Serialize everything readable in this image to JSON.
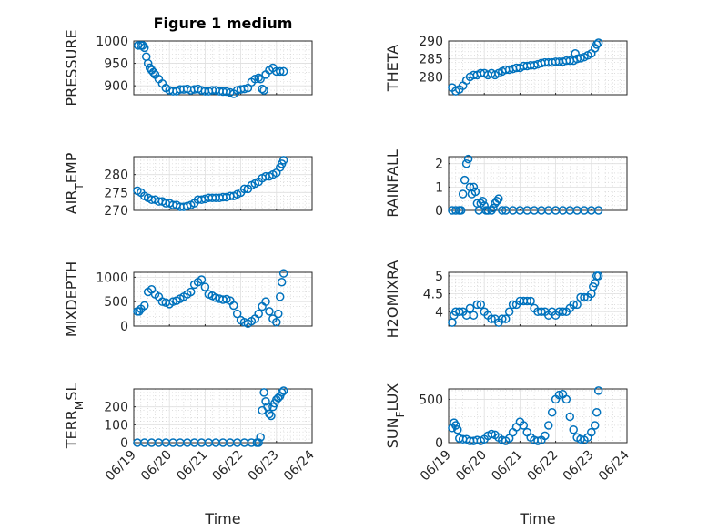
{
  "figure_title": "Figure 1 medium",
  "colors": {
    "series": "#0072bd",
    "axes": "#262626"
  },
  "chart_data": [
    {
      "type": "scatter",
      "title": "Figure 1 medium",
      "ylabel": "PRESSURE",
      "xlim": [
        0,
        5
      ],
      "ylim": [
        880,
        1000
      ],
      "yticks": [
        900,
        950,
        1000
      ],
      "xticks": [],
      "xlabel": "",
      "grid": "on",
      "marker": "o",
      "x": [
        0.12,
        0.2,
        0.25,
        0.3,
        0.35,
        0.4,
        0.45,
        0.5,
        0.55,
        0.6,
        0.7,
        0.8,
        0.9,
        1.0,
        1.1,
        1.2,
        1.3,
        1.4,
        1.5,
        1.6,
        1.7,
        1.8,
        1.9,
        2.0,
        2.1,
        2.2,
        2.3,
        2.4,
        2.5,
        2.6,
        2.7,
        2.8,
        2.9,
        3.0,
        3.1,
        3.2,
        3.3,
        3.4,
        3.5,
        3.55,
        3.6,
        3.65,
        3.7,
        3.8,
        3.9,
        4.0,
        4.1,
        4.2
      ],
      "y": [
        990,
        990,
        990,
        985,
        965,
        950,
        940,
        935,
        930,
        925,
        915,
        905,
        895,
        890,
        888,
        888,
        892,
        892,
        893,
        890,
        892,
        893,
        890,
        888,
        888,
        890,
        890,
        888,
        887,
        887,
        885,
        882,
        890,
        892,
        893,
        895,
        908,
        915,
        918,
        915,
        893,
        890,
        925,
        935,
        940,
        932,
        932,
        932
      ]
    },
    {
      "type": "scatter",
      "ylabel": "THETA",
      "xlim": [
        0,
        5
      ],
      "ylim": [
        275,
        290
      ],
      "yticks": [
        280,
        285,
        290
      ],
      "xticks": [],
      "xlabel": "",
      "grid": "on",
      "marker": "o",
      "x": [
        0.1,
        0.2,
        0.3,
        0.4,
        0.5,
        0.6,
        0.7,
        0.8,
        0.9,
        1.0,
        1.1,
        1.2,
        1.3,
        1.4,
        1.5,
        1.6,
        1.7,
        1.8,
        1.9,
        2.0,
        2.1,
        2.2,
        2.3,
        2.4,
        2.5,
        2.6,
        2.7,
        2.8,
        2.9,
        3.0,
        3.1,
        3.2,
        3.3,
        3.4,
        3.5,
        3.55,
        3.6,
        3.7,
        3.8,
        3.9,
        4.0,
        4.1,
        4.15,
        4.2
      ],
      "y": [
        277,
        276,
        276.5,
        277.5,
        279,
        280,
        280.5,
        280.5,
        281,
        281,
        280.5,
        281,
        280.5,
        281,
        281.5,
        282,
        282,
        282.2,
        282.5,
        282.5,
        283,
        283,
        283.2,
        283.2,
        283.5,
        283.8,
        284,
        284,
        284,
        284.2,
        284.2,
        284.2,
        284.5,
        284.5,
        284.5,
        286.5,
        285,
        285.2,
        285.5,
        286,
        286.5,
        288,
        289,
        289.5
      ]
    },
    {
      "type": "scatter",
      "ylabel": "AIR_TEMP",
      "xlim": [
        0,
        5
      ],
      "ylim": [
        270,
        285
      ],
      "yticks": [
        270,
        275,
        280
      ],
      "xticks": [],
      "xlabel": "",
      "grid": "on",
      "marker": "o",
      "x": [
        0.1,
        0.2,
        0.3,
        0.4,
        0.5,
        0.6,
        0.7,
        0.8,
        0.9,
        1.0,
        1.1,
        1.2,
        1.3,
        1.4,
        1.5,
        1.6,
        1.7,
        1.8,
        1.9,
        2.0,
        2.1,
        2.2,
        2.3,
        2.4,
        2.5,
        2.6,
        2.7,
        2.8,
        2.9,
        3.0,
        3.1,
        3.2,
        3.3,
        3.4,
        3.5,
        3.6,
        3.7,
        3.8,
        3.9,
        4.0,
        4.1,
        4.15,
        4.2
      ],
      "y": [
        275.5,
        275,
        274,
        273.5,
        273,
        273,
        272.5,
        272.5,
        272,
        272,
        271.5,
        271.5,
        271,
        271,
        271.2,
        271.5,
        272,
        273,
        273,
        273.2,
        273.5,
        273.5,
        273.5,
        273.5,
        273.7,
        273.7,
        274,
        274,
        274.5,
        275,
        276,
        276,
        277,
        277.5,
        278,
        279,
        279.5,
        279.5,
        280,
        280.5,
        282,
        283,
        284
      ]
    },
    {
      "type": "scatter",
      "ylabel": "RAINFALL",
      "xlim": [
        0,
        5
      ],
      "ylim": [
        0,
        2.3
      ],
      "yticks": [
        0,
        1,
        2
      ],
      "xticks": [],
      "xlabel": "",
      "grid": "on",
      "marker": "o",
      "x": [
        0.1,
        0.2,
        0.3,
        0.35,
        0.4,
        0.45,
        0.5,
        0.55,
        0.6,
        0.65,
        0.7,
        0.75,
        0.8,
        0.85,
        0.9,
        0.95,
        1.0,
        1.05,
        1.1,
        1.2,
        1.25,
        1.3,
        1.35,
        1.4,
        1.5,
        1.6,
        1.8,
        2.0,
        2.2,
        2.4,
        2.6,
        2.8,
        3.0,
        3.2,
        3.4,
        3.6,
        3.8,
        4.0,
        4.2
      ],
      "y": [
        0,
        0,
        0,
        0,
        0.7,
        1.3,
        2.0,
        2.2,
        1.0,
        0.7,
        1.0,
        0.8,
        0.3,
        0,
        0.3,
        0.4,
        0.2,
        0,
        0,
        0,
        0.1,
        0.3,
        0.4,
        0.5,
        0,
        0,
        0,
        0,
        0,
        0,
        0,
        0,
        0,
        0,
        0,
        0,
        0,
        0,
        0
      ]
    },
    {
      "type": "scatter",
      "ylabel": "MIXDEPTH",
      "xlim": [
        0,
        5
      ],
      "ylim": [
        0,
        1100
      ],
      "yticks": [
        0,
        500,
        1000
      ],
      "xticks": [],
      "xlabel": "",
      "grid": "on",
      "marker": "o",
      "x": [
        0.1,
        0.15,
        0.2,
        0.3,
        0.4,
        0.5,
        0.6,
        0.7,
        0.8,
        0.9,
        1.0,
        1.1,
        1.2,
        1.3,
        1.4,
        1.5,
        1.6,
        1.7,
        1.8,
        1.9,
        2.0,
        2.1,
        2.2,
        2.3,
        2.4,
        2.5,
        2.6,
        2.7,
        2.8,
        2.9,
        3.0,
        3.1,
        3.2,
        3.3,
        3.4,
        3.5,
        3.6,
        3.7,
        3.8,
        3.9,
        4.0,
        4.05,
        4.1,
        4.15,
        4.2
      ],
      "y": [
        300,
        300,
        350,
        420,
        700,
        750,
        650,
        600,
        500,
        480,
        450,
        500,
        520,
        560,
        600,
        650,
        700,
        850,
        900,
        950,
        800,
        650,
        620,
        580,
        560,
        540,
        550,
        520,
        420,
        250,
        120,
        80,
        50,
        100,
        150,
        250,
        400,
        500,
        300,
        150,
        80,
        250,
        600,
        900,
        1080
      ]
    },
    {
      "type": "scatter",
      "ylabel": "H2OMIXRA",
      "xlim": [
        0,
        5
      ],
      "ylim": [
        3.6,
        5.1
      ],
      "yticks": [
        4,
        4.5,
        5
      ],
      "xticks": [],
      "xlabel": "",
      "grid": "on",
      "marker": "o",
      "x": [
        0.1,
        0.15,
        0.2,
        0.3,
        0.4,
        0.5,
        0.6,
        0.7,
        0.8,
        0.9,
        1.0,
        1.1,
        1.2,
        1.3,
        1.4,
        1.5,
        1.6,
        1.7,
        1.8,
        1.9,
        2.0,
        2.1,
        2.2,
        2.3,
        2.4,
        2.5,
        2.6,
        2.7,
        2.8,
        2.9,
        3.0,
        3.1,
        3.2,
        3.3,
        3.4,
        3.5,
        3.6,
        3.7,
        3.8,
        3.9,
        4.0,
        4.05,
        4.1,
        4.15,
        4.2
      ],
      "y": [
        3.7,
        3.9,
        4.0,
        4.0,
        4.0,
        3.9,
        4.1,
        3.9,
        4.2,
        4.2,
        4.0,
        3.9,
        3.8,
        3.8,
        3.7,
        3.8,
        3.8,
        4.0,
        4.2,
        4.2,
        4.3,
        4.3,
        4.3,
        4.3,
        4.1,
        4.0,
        4.0,
        4.0,
        3.9,
        4.0,
        3.9,
        4.0,
        4.0,
        4.0,
        4.1,
        4.2,
        4.2,
        4.4,
        4.4,
        4.4,
        4.5,
        4.7,
        4.8,
        5.0,
        5.0
      ]
    },
    {
      "type": "scatter",
      "ylabel": "TERR_MSL",
      "xlim": [
        0,
        5
      ],
      "ylim": [
        0,
        300
      ],
      "yticks": [
        0,
        100,
        200
      ],
      "xticks": [
        "06/19",
        "06/20",
        "06/21",
        "06/22",
        "06/23",
        "06/24"
      ],
      "xlabel": "Time",
      "grid": "on",
      "marker": "o",
      "x": [
        0.1,
        0.3,
        0.5,
        0.7,
        0.9,
        1.1,
        1.3,
        1.5,
        1.7,
        1.9,
        2.1,
        2.3,
        2.5,
        2.7,
        2.9,
        3.1,
        3.3,
        3.45,
        3.5,
        3.55,
        3.6,
        3.65,
        3.7,
        3.75,
        3.8,
        3.85,
        3.9,
        3.95,
        4.0,
        4.05,
        4.1,
        4.15,
        4.2
      ],
      "y": [
        0,
        0,
        0,
        0,
        0,
        0,
        0,
        0,
        0,
        0,
        0,
        0,
        0,
        0,
        0,
        0,
        0,
        0,
        0,
        30,
        180,
        280,
        230,
        200,
        160,
        150,
        200,
        220,
        240,
        250,
        260,
        280,
        290
      ]
    },
    {
      "type": "scatter",
      "ylabel": "SUN_FLUX",
      "xlim": [
        0,
        5
      ],
      "ylim": [
        0,
        620
      ],
      "yticks": [
        0,
        500
      ],
      "xticks": [
        "06/19",
        "06/20",
        "06/21",
        "06/22",
        "06/23",
        "06/24"
      ],
      "xlabel": "Time",
      "grid": "on",
      "marker": "o",
      "x": [
        0.1,
        0.15,
        0.2,
        0.25,
        0.3,
        0.4,
        0.5,
        0.6,
        0.7,
        0.8,
        0.9,
        1.0,
        1.1,
        1.2,
        1.3,
        1.4,
        1.5,
        1.6,
        1.7,
        1.8,
        1.9,
        2.0,
        2.1,
        2.2,
        2.3,
        2.4,
        2.5,
        2.6,
        2.7,
        2.8,
        2.9,
        3.0,
        3.1,
        3.2,
        3.3,
        3.4,
        3.5,
        3.6,
        3.7,
        3.8,
        3.9,
        4.0,
        4.1,
        4.15,
        4.2
      ],
      "y": [
        170,
        230,
        200,
        150,
        50,
        40,
        40,
        20,
        20,
        30,
        20,
        40,
        80,
        100,
        90,
        60,
        30,
        20,
        50,
        120,
        180,
        240,
        200,
        120,
        60,
        30,
        20,
        30,
        80,
        200,
        350,
        500,
        550,
        560,
        500,
        300,
        150,
        60,
        40,
        30,
        60,
        120,
        200,
        350,
        600
      ]
    }
  ]
}
